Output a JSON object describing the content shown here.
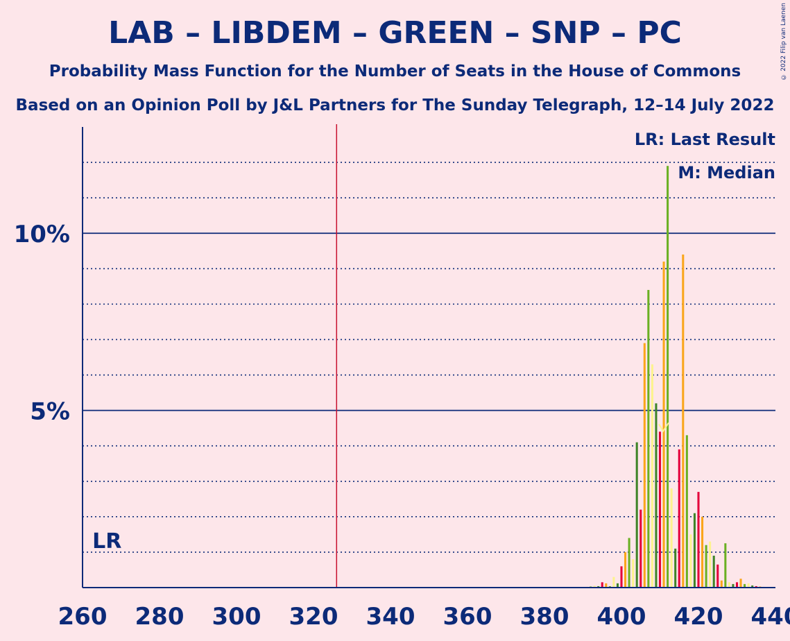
{
  "title": "LAB – LIBDEM – GREEN – SNP – PC",
  "subtitle1": "Probability Mass Function for the Number of Seats in the House of Commons",
  "subtitle2": "Based on an Opinion Poll by J&L Partners for The Sunday Telegraph, 12–14 July 2022",
  "copyright": "© 2022 Filip van Laenen",
  "legend": {
    "last_result": "LR: Last Result",
    "median": "M: Median"
  },
  "colors": {
    "background": "#fde6ea",
    "axis": "#0c2a78",
    "majority_line": "#c8102e",
    "bar_palette": [
      "#e4003b",
      "#faa61a",
      "#6ab023",
      "#fdf38e",
      "#3f8428"
    ]
  },
  "chart_data": {
    "type": "bar",
    "xlabel": "",
    "ylabel": "",
    "xlim": [
      260,
      440
    ],
    "ylim": [
      0,
      13
    ],
    "x_ticks": [
      260,
      280,
      300,
      320,
      340,
      360,
      380,
      400,
      420,
      440
    ],
    "x_tick_labels": [
      "260",
      "280",
      "300",
      "320",
      "340",
      "360",
      "380",
      "400",
      "420",
      "440"
    ],
    "y_ticks": [
      5,
      10
    ],
    "y_tick_labels": [
      "5%",
      "10%"
    ],
    "y_gridlines_dotted": [
      1,
      2,
      3,
      4,
      6,
      7,
      8,
      9,
      11,
      12
    ],
    "majority_line": 326,
    "last_result": 262,
    "last_result_label": "LR",
    "median": 411,
    "median_label": "M",
    "x": [
      390,
      391,
      392,
      393,
      394,
      395,
      396,
      397,
      398,
      399,
      400,
      401,
      402,
      403,
      404,
      405,
      406,
      407,
      408,
      409,
      410,
      411,
      412,
      413,
      414,
      415,
      416,
      417,
      418,
      419,
      420,
      421,
      422,
      423,
      424,
      425,
      426,
      427,
      428,
      429,
      430,
      431,
      432,
      433,
      434,
      435,
      436,
      437,
      438
    ],
    "values": [
      0.01,
      0.02,
      0.03,
      0.05,
      0.04,
      0.15,
      0.12,
      0.04,
      0.3,
      0.12,
      0.6,
      1.0,
      1.4,
      0.8,
      4.1,
      2.2,
      6.9,
      8.4,
      6.3,
      5.2,
      4.4,
      9.2,
      11.9,
      2.8,
      1.1,
      3.9,
      9.4,
      4.3,
      1.5,
      2.1,
      2.7,
      2.0,
      1.2,
      1.3,
      0.9,
      0.65,
      0.2,
      1.25,
      0.15,
      0.1,
      0.15,
      0.25,
      0.1,
      0.12,
      0.06,
      0.04,
      0.03,
      0.02,
      0.01
    ]
  }
}
